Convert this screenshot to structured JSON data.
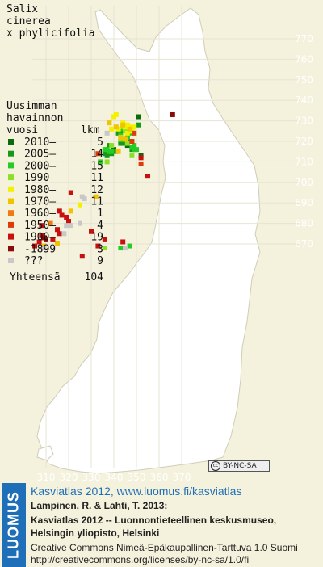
{
  "title_lines": [
    "Salix",
    "cinerea",
    "x phylicifolia"
  ],
  "legend": {
    "heading_lines": [
      "Uusimman",
      "havainnon"
    ],
    "col_year": "vuosi",
    "col_count": "lkm",
    "rows": [
      {
        "label": "2010–",
        "count": "5",
        "color": "#0a6b0a"
      },
      {
        "label": "2005–",
        "count": "14",
        "color": "#14991a"
      },
      {
        "label": "2000–",
        "count": "15",
        "color": "#25cc25"
      },
      {
        "label": "1990–",
        "count": "11",
        "color": "#8de02a"
      },
      {
        "label": "1980–",
        "count": "12",
        "color": "#f2f200"
      },
      {
        "label": "1970–",
        "count": "11",
        "color": "#f2c400"
      },
      {
        "label": "1960–",
        "count": "1",
        "color": "#f07a10"
      },
      {
        "label": "1950–",
        "count": "4",
        "color": "#dc3c0a"
      },
      {
        "label": "1900–",
        "count": "19",
        "color": "#c81010"
      },
      {
        "label": "-1899",
        "count": "3",
        "color": "#8c0a0a"
      },
      {
        "label": "???",
        "count": "9",
        "color": "#c8c8c8"
      }
    ],
    "total_label": "Yhteensä",
    "total_count": "104"
  },
  "axes": {
    "x_labels": [
      "310",
      "320",
      "330",
      "340",
      "350",
      "360",
      "370"
    ],
    "y_labels": [
      "770",
      "760",
      "750",
      "740",
      "730",
      "720",
      "710",
      "700",
      "690",
      "680",
      "670"
    ]
  },
  "colors": {
    "background": "#f4f2dc",
    "land": "#ffffff",
    "grid": "#e6e4d2",
    "outline": "#cfcdb8",
    "brand": "#1f6fb8"
  },
  "brand": "LUOMUS",
  "license_badge": "BY-NC-SA",
  "footer": {
    "link": "Kasviatlas 2012, www.luomus.fi/kasviatlas",
    "ref1": "Lampinen, R. & Lahti, T. 2013:",
    "ref2": "Kasviatlas 2012 -- Luonnontieteellinen keskusmuseo,",
    "ref3": "Helsingin yliopisto, Helsinki",
    "license1": "Creative Commons Nimeä-Epäkaupallinen-Tarttuva 1.0 Suomi",
    "license2": "http://creativecommons.org/licenses/by-nc-sa/1.0/fi"
  },
  "chart_data": {
    "type": "scatter",
    "xlim": [
      305,
      375
    ],
    "ylim": [
      664,
      777
    ],
    "points": [
      {
        "x": 351,
        "y": 732,
        "c": 0
      },
      {
        "x": 346,
        "y": 718,
        "c": 0
      },
      {
        "x": 340,
        "y": 716,
        "c": 0
      },
      {
        "x": 352,
        "y": 713,
        "c": 0
      },
      {
        "x": 343,
        "y": 725,
        "c": 0
      },
      {
        "x": 343,
        "y": 720,
        "c": 1
      },
      {
        "x": 344,
        "y": 721,
        "c": 1
      },
      {
        "x": 343,
        "y": 719,
        "c": 1
      },
      {
        "x": 344,
        "y": 719,
        "c": 1
      },
      {
        "x": 345,
        "y": 720,
        "c": 1
      },
      {
        "x": 339,
        "y": 714,
        "c": 1
      },
      {
        "x": 341,
        "y": 715,
        "c": 1
      },
      {
        "x": 336,
        "y": 714,
        "c": 1
      },
      {
        "x": 337,
        "y": 713,
        "c": 1
      },
      {
        "x": 348,
        "y": 716,
        "c": 1
      },
      {
        "x": 346,
        "y": 721,
        "c": 1
      },
      {
        "x": 351,
        "y": 728,
        "c": 1
      },
      {
        "x": 338,
        "y": 718,
        "c": 1
      },
      {
        "x": 342,
        "y": 724,
        "c": 1
      },
      {
        "x": 337,
        "y": 716,
        "c": 2
      },
      {
        "x": 338,
        "y": 715,
        "c": 2
      },
      {
        "x": 343,
        "y": 723,
        "c": 2
      },
      {
        "x": 346,
        "y": 722,
        "c": 2
      },
      {
        "x": 347,
        "y": 724,
        "c": 2
      },
      {
        "x": 348,
        "y": 717,
        "c": 2
      },
      {
        "x": 349,
        "y": 718,
        "c": 2
      },
      {
        "x": 350,
        "y": 716,
        "c": 2
      },
      {
        "x": 349,
        "y": 716,
        "c": 2
      },
      {
        "x": 344,
        "y": 726,
        "c": 2
      },
      {
        "x": 336,
        "y": 716,
        "c": 2
      },
      {
        "x": 339,
        "y": 715,
        "c": 2
      },
      {
        "x": 334,
        "y": 710,
        "c": 2
      },
      {
        "x": 347,
        "y": 669,
        "c": 2
      },
      {
        "x": 343,
        "y": 668,
        "c": 2
      },
      {
        "x": 347,
        "y": 725,
        "c": 3
      },
      {
        "x": 349,
        "y": 724,
        "c": 3
      },
      {
        "x": 348,
        "y": 720,
        "c": 3
      },
      {
        "x": 348,
        "y": 713,
        "c": 3
      },
      {
        "x": 346,
        "y": 719,
        "c": 3
      },
      {
        "x": 343,
        "y": 721,
        "c": 3
      },
      {
        "x": 339,
        "y": 718,
        "c": 3
      },
      {
        "x": 344,
        "y": 727,
        "c": 3
      },
      {
        "x": 345,
        "y": 725,
        "c": 3
      },
      {
        "x": 337,
        "y": 710,
        "c": 3
      },
      {
        "x": 336,
        "y": 668,
        "c": 3
      },
      {
        "x": 346,
        "y": 728,
        "c": 4
      },
      {
        "x": 347,
        "y": 727,
        "c": 4
      },
      {
        "x": 345,
        "y": 727,
        "c": 4
      },
      {
        "x": 344,
        "y": 729,
        "c": 4
      },
      {
        "x": 342,
        "y": 726,
        "c": 4
      },
      {
        "x": 341,
        "y": 733,
        "c": 4
      },
      {
        "x": 349,
        "y": 727,
        "c": 4
      },
      {
        "x": 340,
        "y": 732,
        "c": 4
      },
      {
        "x": 346,
        "y": 724,
        "c": 4
      },
      {
        "x": 348,
        "y": 725,
        "c": 4
      },
      {
        "x": 339,
        "y": 726,
        "c": 4
      },
      {
        "x": 325,
        "y": 689,
        "c": 4
      },
      {
        "x": 338,
        "y": 729,
        "c": 5
      },
      {
        "x": 343,
        "y": 722,
        "c": 5
      },
      {
        "x": 347,
        "y": 726,
        "c": 5
      },
      {
        "x": 344,
        "y": 728,
        "c": 5
      },
      {
        "x": 341,
        "y": 727,
        "c": 5
      },
      {
        "x": 345,
        "y": 721,
        "c": 5
      },
      {
        "x": 332,
        "y": 693,
        "c": 5
      },
      {
        "x": 321,
        "y": 686,
        "c": 5
      },
      {
        "x": 309,
        "y": 669,
        "c": 5
      },
      {
        "x": 315,
        "y": 670,
        "c": 5
      },
      {
        "x": 342,
        "y": 715,
        "c": 5
      },
      {
        "x": 312,
        "y": 680,
        "c": 6
      },
      {
        "x": 348,
        "y": 720,
        "c": 7
      },
      {
        "x": 352,
        "y": 709,
        "c": 7
      },
      {
        "x": 333,
        "y": 714,
        "c": 7
      },
      {
        "x": 349,
        "y": 724,
        "c": 7
      },
      {
        "x": 355,
        "y": 703,
        "c": 8
      },
      {
        "x": 352,
        "y": 712,
        "c": 8
      },
      {
        "x": 313,
        "y": 672,
        "c": 8
      },
      {
        "x": 307,
        "y": 671,
        "c": 8
      },
      {
        "x": 305,
        "y": 669,
        "c": 8
      },
      {
        "x": 308,
        "y": 679,
        "c": 8
      },
      {
        "x": 315,
        "y": 677,
        "c": 8
      },
      {
        "x": 316,
        "y": 675,
        "c": 8
      },
      {
        "x": 319,
        "y": 683,
        "c": 8
      },
      {
        "x": 320,
        "y": 681,
        "c": 8
      },
      {
        "x": 326,
        "y": 664,
        "c": 8
      },
      {
        "x": 330,
        "y": 676,
        "c": 8
      },
      {
        "x": 336,
        "y": 672,
        "c": 8
      },
      {
        "x": 333,
        "y": 669,
        "c": 8
      },
      {
        "x": 344,
        "y": 671,
        "c": 8
      },
      {
        "x": 321,
        "y": 695,
        "c": 8
      },
      {
        "x": 316,
        "y": 686,
        "c": 8
      },
      {
        "x": 308,
        "y": 674,
        "c": 8
      },
      {
        "x": 317,
        "y": 684,
        "c": 8
      },
      {
        "x": 366,
        "y": 733,
        "c": 9
      },
      {
        "x": 309,
        "y": 673,
        "c": 9
      },
      {
        "x": 310,
        "y": 672,
        "c": 9
      },
      {
        "x": 337,
        "y": 724,
        "c": 10
      },
      {
        "x": 326,
        "y": 693,
        "c": 10
      },
      {
        "x": 327,
        "y": 692,
        "c": 10
      },
      {
        "x": 325,
        "y": 680,
        "c": 10
      },
      {
        "x": 321,
        "y": 679,
        "c": 10
      },
      {
        "x": 309,
        "y": 668,
        "c": 10
      },
      {
        "x": 345,
        "y": 668,
        "c": 10
      },
      {
        "x": 318,
        "y": 675,
        "c": 10
      },
      {
        "x": 319,
        "y": 679,
        "c": 10
      }
    ]
  }
}
